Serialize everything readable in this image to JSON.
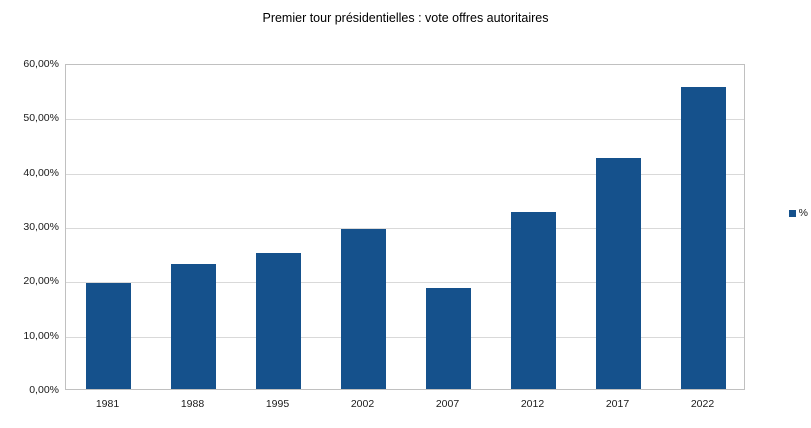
{
  "title": "Premier tour présidentielles : vote offres autoritaires",
  "legend": {
    "label": "%"
  },
  "colors": {
    "bar": "#15518c",
    "gridline": "#d9d9d9",
    "plot_border": "#c0c0c0"
  },
  "chart_data": {
    "type": "bar",
    "title": "Premier tour présidentielles : vote offres autoritaires",
    "categories": [
      "1981",
      "1988",
      "1995",
      "2002",
      "2007",
      "2012",
      "2017",
      "2022"
    ],
    "values": [
      19.5,
      23.0,
      25.0,
      29.5,
      18.5,
      32.5,
      42.5,
      55.5
    ],
    "series_name": "%",
    "xlabel": "",
    "ylabel": "",
    "ylim": [
      0,
      60
    ],
    "y_tick_step": 10,
    "y_tick_labels": [
      "0,00%",
      "10,00%",
      "20,00%",
      "30,00%",
      "40,00%",
      "50,00%",
      "60,00%"
    ],
    "grid": true,
    "legend_position": "right",
    "legend_entries": [
      "%"
    ]
  }
}
